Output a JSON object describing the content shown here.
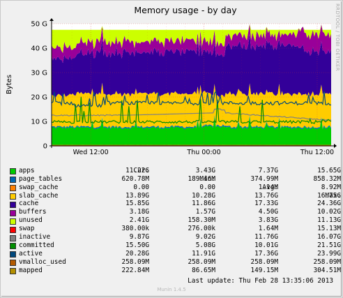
{
  "chart_data": {
    "type": "area",
    "title": "Memory usage - by day",
    "xlabel": "",
    "ylabel": "Bytes",
    "ylim": [
      0,
      50
    ],
    "y_ticks": [
      {
        "value": 0,
        "label": "0"
      },
      {
        "value": 10,
        "label": "10 G"
      },
      {
        "value": 20,
        "label": "20 G"
      },
      {
        "value": 30,
        "label": "30 G"
      },
      {
        "value": 40,
        "label": "40 G"
      },
      {
        "value": 50,
        "label": "50 G"
      }
    ],
    "x_ticks": [
      {
        "value": "Wed 12:00",
        "label": "Wed 12:00"
      },
      {
        "value": "Thu 00:00",
        "label": "Thu 00:00"
      },
      {
        "value": "Thu 12:00",
        "label": "Thu 12:00"
      }
    ],
    "grid": true,
    "stacked_series": [
      {
        "name": "apps",
        "color": "#00cc00",
        "approx_level": 7.5
      },
      {
        "name": "page_tables",
        "color": "#0066b3",
        "approx_level": 0.4
      },
      {
        "name": "swap_cache",
        "color": "#ff8000",
        "approx_level": 0.0
      },
      {
        "name": "slab_cache",
        "color": "#ffcc00",
        "approx_level": 13.5
      },
      {
        "name": "cache",
        "color": "#330099",
        "approx_level": 17.0
      },
      {
        "name": "buffers",
        "color": "#990099",
        "approx_level": 3.0
      },
      {
        "name": "unused",
        "color": "#ccff00",
        "approx_level": 5.0
      }
    ],
    "line_series": [
      {
        "name": "swap",
        "color": "#ff0000"
      },
      {
        "name": "inactive",
        "color": "#808080"
      },
      {
        "name": "committed",
        "color": "#008f00"
      },
      {
        "name": "active",
        "color": "#00487d"
      },
      {
        "name": "vmalloc_used",
        "color": "#b35a00"
      },
      {
        "name": "mapped",
        "color": "#b38f00"
      }
    ],
    "legend_columns": [
      "Cur:",
      "Min:",
      "Avg:",
      "Max:"
    ],
    "legend_rows": [
      {
        "name": "apps",
        "color": "#00cc00",
        "cur": "11.22G",
        "min": "3.43G",
        "avg": "7.37G",
        "max": "15.65G"
      },
      {
        "name": "page_tables",
        "color": "#0066b3",
        "cur": "620.78M",
        "min": "189.46M",
        "avg": "374.99M",
        "max": "858.32M"
      },
      {
        "name": "swap_cache",
        "color": "#ff8000",
        "cur": "0.00",
        "min": "0.00",
        "avg": "1.14M",
        "max": "8.92M"
      },
      {
        "name": "slab_cache",
        "color": "#ffcc00",
        "cur": "13.89G",
        "min": "10.28G",
        "avg": "13.76G",
        "max": "16.75G"
      },
      {
        "name": "cache",
        "color": "#330099",
        "cur": "15.85G",
        "min": "11.86G",
        "avg": "17.33G",
        "max": "24.36G"
      },
      {
        "name": "buffers",
        "color": "#990099",
        "cur": "3.18G",
        "min": "1.57G",
        "avg": "4.50G",
        "max": "10.02G"
      },
      {
        "name": "unused",
        "color": "#ccff00",
        "cur": "2.41G",
        "min": "158.30M",
        "avg": "3.83G",
        "max": "11.13G"
      },
      {
        "name": "swap",
        "color": "#ff0000",
        "cur": "380.00k",
        "min": "276.00k",
        "avg": "1.64M",
        "max": "15.13M"
      },
      {
        "name": "inactive",
        "color": "#808080",
        "cur": "9.87G",
        "min": "9.02G",
        "avg": "11.76G",
        "max": "16.07G"
      },
      {
        "name": "committed",
        "color": "#008f00",
        "cur": "15.50G",
        "min": "5.08G",
        "avg": "10.01G",
        "max": "21.51G"
      },
      {
        "name": "active",
        "color": "#00487d",
        "cur": "20.28G",
        "min": "11.91G",
        "avg": "17.36G",
        "max": "23.99G"
      },
      {
        "name": "vmalloc_used",
        "color": "#b35a00",
        "cur": "258.09M",
        "min": "258.09M",
        "avg": "258.09M",
        "max": "258.09M"
      },
      {
        "name": "mapped",
        "color": "#b38f00",
        "cur": "222.84M",
        "min": "86.65M",
        "avg": "149.15M",
        "max": "304.51M"
      }
    ]
  },
  "footer": {
    "last_update": "Last update: Thu Feb 28 13:35:06 2013",
    "version": "Munin 1.4.5",
    "rrdtool_credit": "RRDTOOL / TOBI OETIKER"
  }
}
